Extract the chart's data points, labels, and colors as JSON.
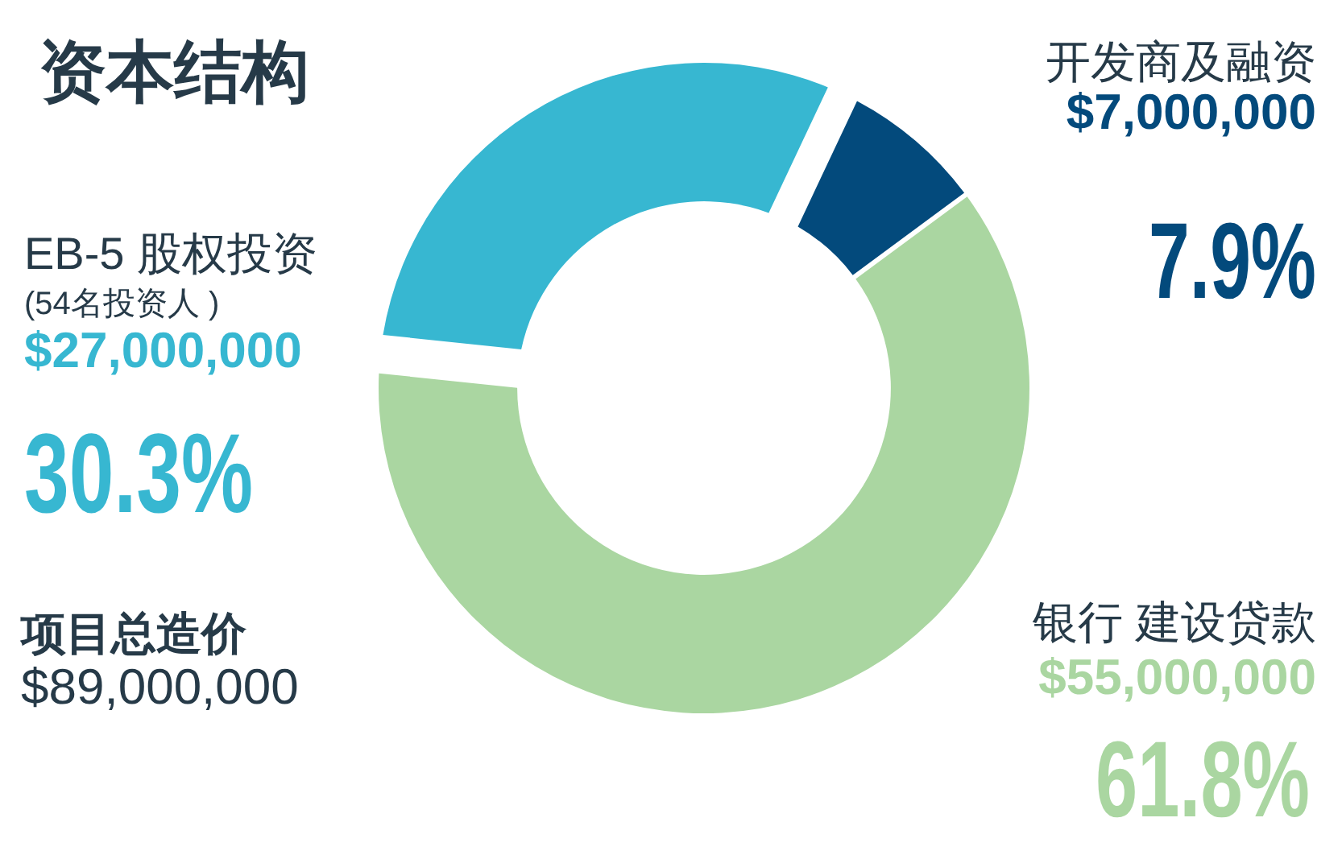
{
  "chart_data": {
    "type": "donut",
    "title": "资本结构",
    "categories": [
      "EB-5 股权投资",
      "开发商及融资",
      "银行 建设贷款"
    ],
    "values": [
      27000000,
      7000000,
      55000000
    ],
    "colors": [
      "#37b7d1",
      "#034a7c",
      "#aad6a1"
    ],
    "value_labels": [
      "$27,000,000",
      "$7,000,000",
      "$55,000,000"
    ],
    "annotations": [
      "(54名投资人 )",
      "30.3%",
      "7.9%",
      "61.8%",
      "项目总造价",
      "$89,000,000"
    ]
  }
}
